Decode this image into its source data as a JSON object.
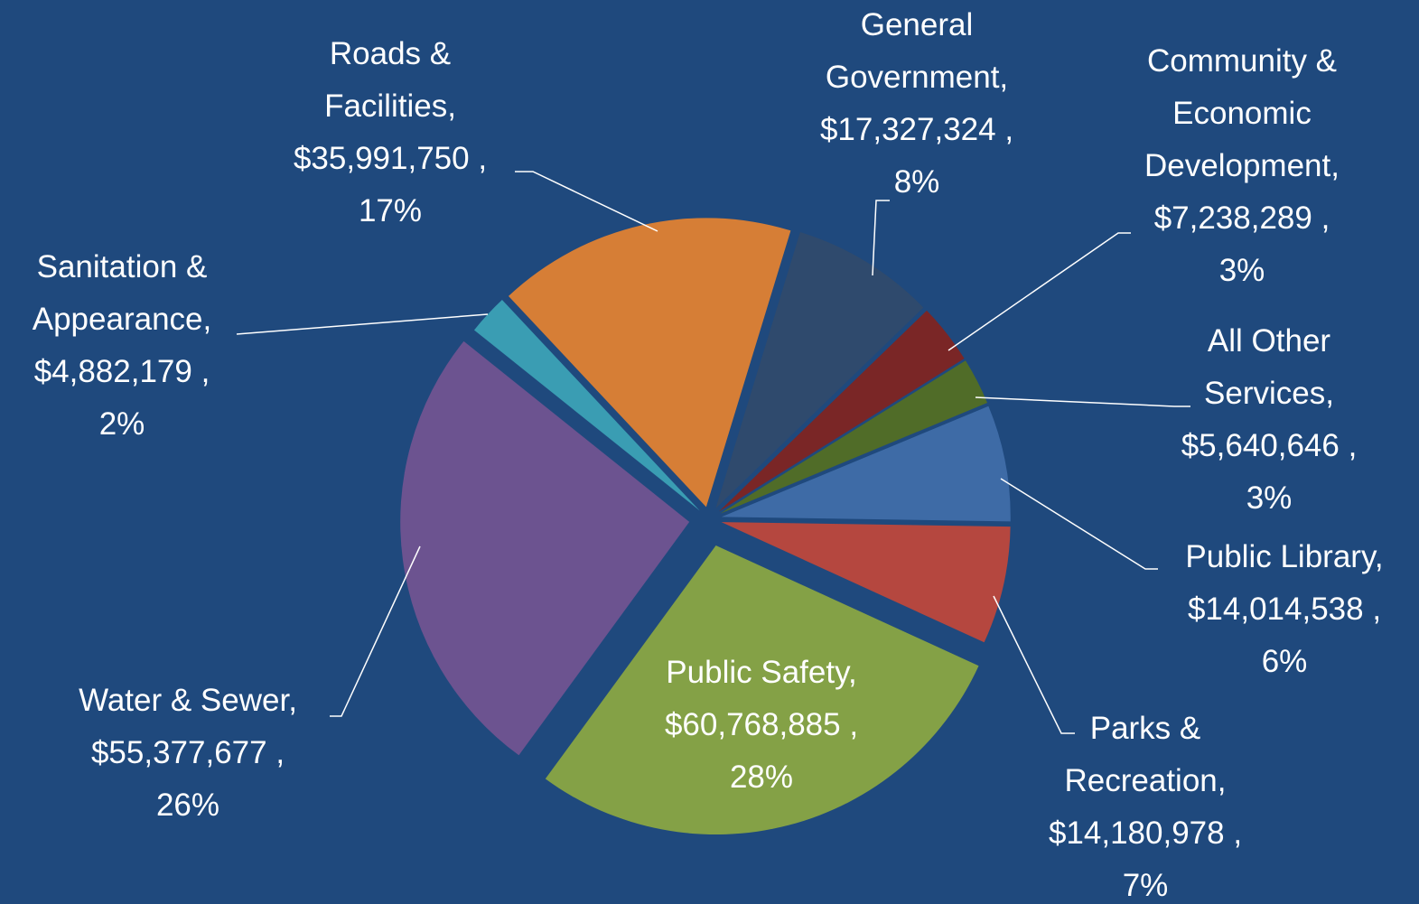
{
  "chart_data": {
    "type": "pie",
    "categories": [
      "General Government,",
      "Community & Economic Development,",
      "All Other Services,",
      "Public Library,",
      "Parks & Recreation,",
      "Public Safety,",
      "Water & Sewer,",
      "Sanitation & Appearance,",
      "Roads & Facilities,"
    ],
    "values": [
      17327324,
      7238289,
      5640646,
      14014538,
      14180978,
      60768885,
      55377677,
      4882179,
      35991750
    ],
    "value_labels": [
      "$17,327,324 ,",
      "$7,238,289 ,",
      "$5,640,646 ,",
      "$14,014,538 ,",
      "$14,180,978 ,",
      "$60,768,885 ,",
      "$55,377,677 ,",
      "$4,882,179 ,",
      "$35,991,750 ,"
    ],
    "percent_labels": [
      "8%",
      "3%",
      "3%",
      "6%",
      "7%",
      "28%",
      "26%",
      "2%",
      "17%"
    ],
    "colors": [
      "#2f4a6d",
      "#7a2626",
      "#506c28",
      "#3e6ba6",
      "#b5473f",
      "#84a146",
      "#6c5390",
      "#3a9db3",
      "#d67e36"
    ]
  }
}
